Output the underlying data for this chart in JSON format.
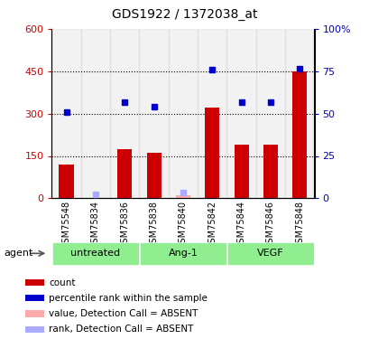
{
  "title": "GDS1922 / 1372038_at",
  "samples": [
    "GSM75548",
    "GSM75834",
    "GSM75836",
    "GSM75838",
    "GSM75840",
    "GSM75842",
    "GSM75844",
    "GSM75846",
    "GSM75848"
  ],
  "bar_values": [
    120,
    null,
    175,
    160,
    null,
    320,
    190,
    190,
    450
  ],
  "bar_values_absent": [
    null,
    null,
    null,
    null,
    10,
    null,
    null,
    null,
    null
  ],
  "rank_values": [
    305,
    null,
    340,
    325,
    null,
    455,
    340,
    340,
    460
  ],
  "rank_values_absent": [
    null,
    15,
    null,
    null,
    20,
    null,
    null,
    null,
    null
  ],
  "bar_color": "#cc0000",
  "rank_color": "#0000cc",
  "absent_bar_color": "#ffaaaa",
  "absent_rank_color": "#aaaaff",
  "ylim_left": [
    0,
    600
  ],
  "ylim_right": [
    0,
    100
  ],
  "yticks_left": [
    0,
    150,
    300,
    450,
    600
  ],
  "ytick_labels_left": [
    "0",
    "150",
    "300",
    "450",
    "600"
  ],
  "yticks_right": [
    0,
    25,
    50,
    75,
    100
  ],
  "ytick_labels_right": [
    "0",
    "25",
    "50",
    "75",
    "100%"
  ],
  "groups": [
    {
      "label": "untreated",
      "start": 0,
      "end": 3
    },
    {
      "label": "Ang-1",
      "start": 3,
      "end": 6
    },
    {
      "label": "VEGF",
      "start": 6,
      "end": 9
    }
  ],
  "group_color": "#90ee90",
  "agent_label": "agent",
  "tick_color_left": "#cc0000",
  "tick_color_right": "#0000cc",
  "legend_items": [
    {
      "label": "count",
      "color": "#cc0000"
    },
    {
      "label": "percentile rank within the sample",
      "color": "#0000cc"
    },
    {
      "label": "value, Detection Call = ABSENT",
      "color": "#ffaaaa"
    },
    {
      "label": "rank, Detection Call = ABSENT",
      "color": "#aaaaff"
    }
  ],
  "dotted_lines": [
    150,
    300,
    450
  ],
  "bar_width": 0.5
}
